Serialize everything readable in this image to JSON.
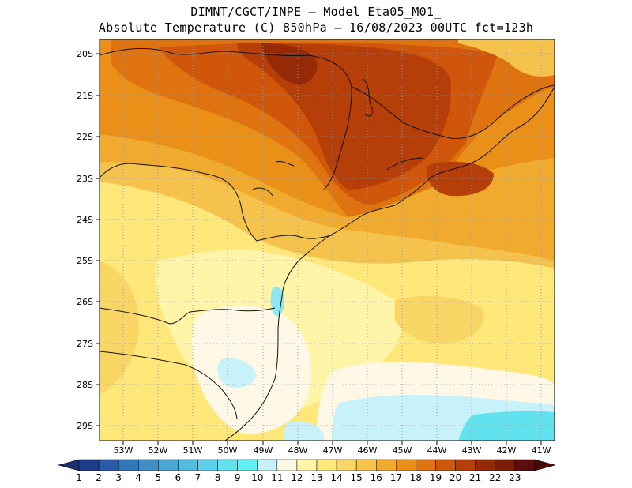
{
  "title_line1": "DIMNT/CGCT/INPE —  Model Eta05_M01_",
  "title_line2": "Absolute Temperature (C) 850hPa —  16/08/2023 00UTC fct=123h",
  "lat_labels": [
    "20S",
    "21S",
    "22S",
    "23S",
    "24S",
    "25S",
    "26S",
    "27S",
    "28S",
    "29S"
  ],
  "lon_labels": [
    "53W",
    "52W",
    "51W",
    "50W",
    "49W",
    "48W",
    "47W",
    "46W",
    "45W",
    "44W",
    "43W",
    "42W",
    "41W"
  ],
  "colorbar": {
    "labels": [
      "1",
      "2",
      "3",
      "4",
      "5",
      "6",
      "7",
      "8",
      "9",
      "10",
      "11",
      "12",
      "13",
      "14",
      "15",
      "16",
      "17",
      "18",
      "19",
      "20",
      "21",
      "22",
      "23"
    ],
    "colors": [
      "#1f3c8a",
      "#2a5aa8",
      "#3377bb",
      "#3f8fc4",
      "#4aa6d2",
      "#52bcde",
      "#5cd0e8",
      "#62e2ef",
      "#5ff0f4",
      "#c8f2fa",
      "#fff8e6",
      "#fff5a8",
      "#ffe77a",
      "#f9d664",
      "#f5c24c",
      "#f0ab2e",
      "#ea9018",
      "#df7310",
      "#cf560a",
      "#b63e08",
      "#962a06",
      "#7a1c05",
      "#5c0c0c"
    ],
    "low_arrow_color": "#1a2f6e",
    "high_arrow_color": "#4a0808"
  }
}
